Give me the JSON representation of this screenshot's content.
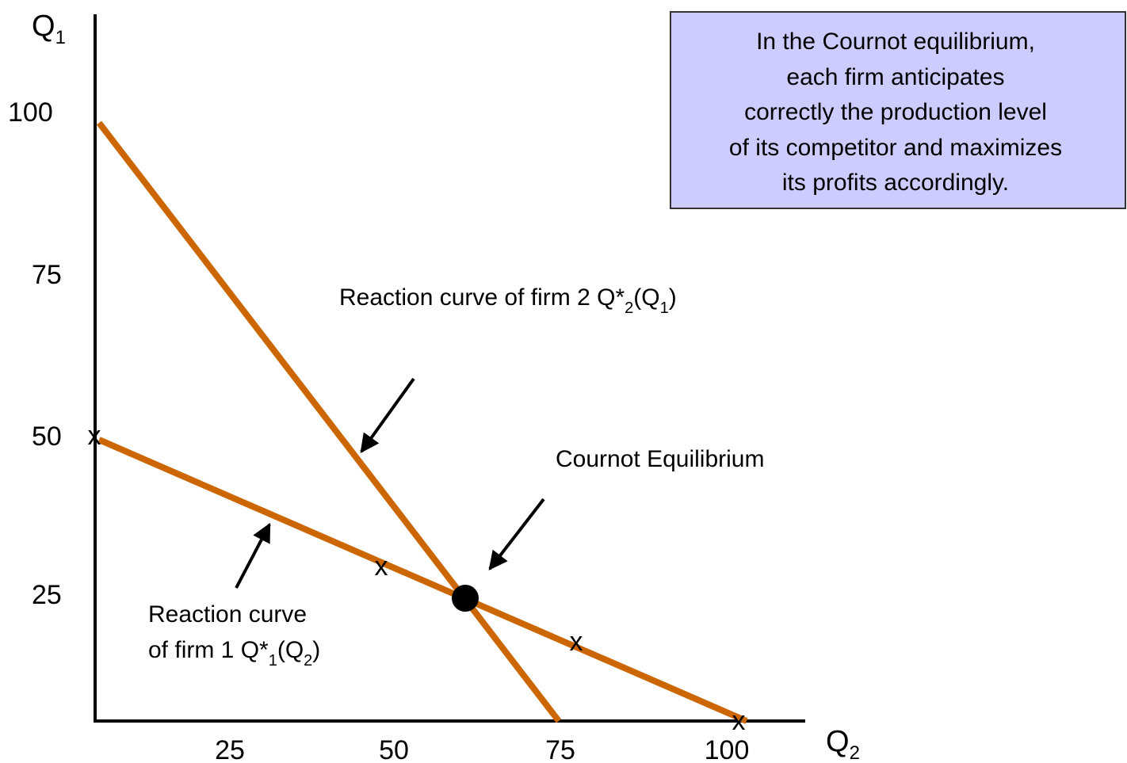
{
  "axes": {
    "y_label": {
      "main": "Q",
      "sub": "1"
    },
    "x_label": {
      "main": "Q",
      "sub": "2"
    },
    "y_ticks": [
      "100",
      "75",
      "50",
      "25"
    ],
    "x_ticks": [
      "25",
      "50",
      "75",
      "100"
    ]
  },
  "markers": [
    "x",
    "x",
    "x",
    "x"
  ],
  "curve_2_label": {
    "text": "Reaction curve of firm 2 Q*",
    "sub_a": "2",
    "open": "(Q",
    "sub_b": "1",
    "close": ")"
  },
  "curve_1_label": {
    "line_1": "Reaction curve",
    "text": "of firm 1 Q*",
    "sub_a": "1",
    "open": "(Q",
    "sub_b": "2",
    "close": ")"
  },
  "equilibrium_label": "Cournot Equilibrium",
  "note": [
    "In the Cournot equilibrium,",
    "each firm anticipates",
    "correctly the production level",
    "of its competitor and maximizes",
    "its profits accordingly."
  ]
}
